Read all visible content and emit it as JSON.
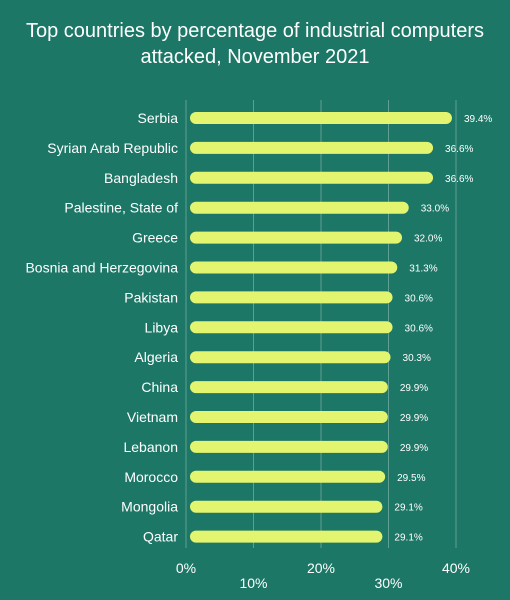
{
  "chart_data": {
    "type": "bar",
    "orientation": "horizontal",
    "title": "Top countries by percentage of industrial computers attacked, November 2021",
    "title_lines": [
      "Top countries by percentage of industrial computers",
      "attacked, November 2021"
    ],
    "categories": [
      "Serbia",
      "Syrian Arab Republic",
      "Bangladesh",
      "Palestine, State of",
      "Greece",
      "Bosnia and Herzegovina",
      "Pakistan",
      "Libya",
      "Algeria",
      "China",
      "Vietnam",
      "Lebanon",
      "Morocco",
      "Mongolia",
      "Qatar"
    ],
    "values": [
      39.4,
      36.6,
      36.6,
      33.0,
      32.0,
      31.3,
      30.6,
      30.6,
      30.3,
      29.9,
      29.9,
      29.9,
      29.5,
      29.1,
      29.1
    ],
    "value_labels": [
      "39.4%",
      "36.6%",
      "36.6%",
      "33.0%",
      "32.0%",
      "31.3%",
      "30.6%",
      "30.6%",
      "30.3%",
      "29.9%",
      "29.9%",
      "29.9%",
      "29.5%",
      "29.1%",
      "29.1%"
    ],
    "xlim": [
      0,
      40
    ],
    "x_ticks": [
      0,
      10,
      20,
      30,
      40
    ],
    "x_tick_labels": [
      "0%",
      "10%",
      "20%",
      "30%",
      "40%"
    ],
    "xlabel": "",
    "ylabel": "",
    "grid": true,
    "legend": "none",
    "colors": {
      "background": "#1c7766",
      "bar": "#e3f56f",
      "text": "#ffffff",
      "grid": "#5f9f92"
    }
  }
}
